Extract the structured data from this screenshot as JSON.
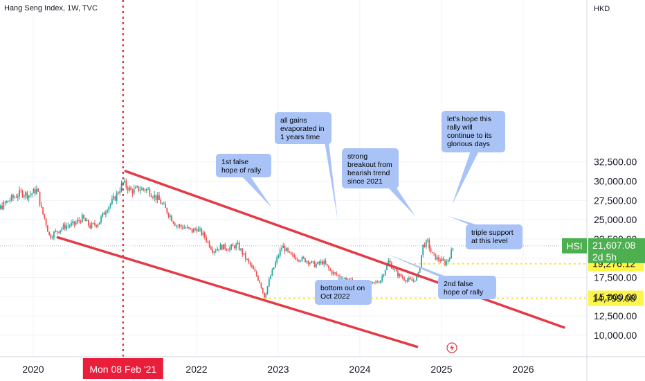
{
  "header": {
    "title": "Hang Seng Index, 1W, TVC",
    "currency": "HKD"
  },
  "colors": {
    "up": "#26a69a",
    "down": "#ef5350",
    "channel": "#e53945",
    "crosshair": "#e53945",
    "support": "#f5e23b",
    "note_bg": "#a9c3f7",
    "price_badge": "#4caf50",
    "level_badge": "#fdf54a",
    "crosshair_badge": "#e91e3a"
  },
  "chart_data": {
    "type": "candlestick",
    "ylim": [
      8500,
      35500
    ],
    "yticks": [
      10000,
      12500,
      15000,
      17500,
      20000,
      22500,
      25000,
      27500,
      30000,
      32500
    ],
    "ytick_labels": [
      "10,000.00",
      "12,500.00",
      "15,000.00",
      "17,500.00",
      "20,000.00",
      "22,500.00",
      "25,000.00",
      "27,500.00",
      "30,000.00",
      "32,500.00"
    ],
    "xticks": [
      2020,
      2022,
      2023,
      2024,
      2025,
      2026
    ],
    "xtick_labels": [
      "2020",
      "2022",
      "2023",
      "2024",
      "2025",
      "2026"
    ],
    "crosshair_date": "Mon 08 Feb '21",
    "crosshair_t": 2021.1,
    "close_path": [
      [
        2019.35,
        25800
      ],
      [
        2019.45,
        26900
      ],
      [
        2019.55,
        26100
      ],
      [
        2019.7,
        27500
      ],
      [
        2019.85,
        28500
      ],
      [
        2019.95,
        28200
      ],
      [
        2020.05,
        28900
      ],
      [
        2020.1,
        26300
      ],
      [
        2020.15,
        24800
      ],
      [
        2020.2,
        22800
      ],
      [
        2020.3,
        23600
      ],
      [
        2020.4,
        24200
      ],
      [
        2020.5,
        24400
      ],
      [
        2020.6,
        25200
      ],
      [
        2020.7,
        24100
      ],
      [
        2020.8,
        24600
      ],
      [
        2020.9,
        26500
      ],
      [
        2021.0,
        27800
      ],
      [
        2021.1,
        29800
      ],
      [
        2021.2,
        28700
      ],
      [
        2021.3,
        29000
      ],
      [
        2021.4,
        28900
      ],
      [
        2021.55,
        27400
      ],
      [
        2021.65,
        25900
      ],
      [
        2021.75,
        24300
      ],
      [
        2021.85,
        24000
      ],
      [
        2021.95,
        23500
      ],
      [
        2022.0,
        23900
      ],
      [
        2022.1,
        22800
      ],
      [
        2022.2,
        21000
      ],
      [
        2022.3,
        21500
      ],
      [
        2022.4,
        21300
      ],
      [
        2022.5,
        21700
      ],
      [
        2022.6,
        20000
      ],
      [
        2022.7,
        18400
      ],
      [
        2022.78,
        16800
      ],
      [
        2022.83,
        14900
      ],
      [
        2022.9,
        17500
      ],
      [
        2022.98,
        19800
      ],
      [
        2023.05,
        21600
      ],
      [
        2023.15,
        20300
      ],
      [
        2023.25,
        20000
      ],
      [
        2023.35,
        19700
      ],
      [
        2023.45,
        19100
      ],
      [
        2023.55,
        19500
      ],
      [
        2023.65,
        18200
      ],
      [
        2023.75,
        17600
      ],
      [
        2023.85,
        17200
      ],
      [
        2023.95,
        16700
      ],
      [
        2024.0,
        16300
      ],
      [
        2024.05,
        15600
      ],
      [
        2024.12,
        16500
      ],
      [
        2024.25,
        17100
      ],
      [
        2024.35,
        19600
      ],
      [
        2024.45,
        18000
      ],
      [
        2024.55,
        17300
      ],
      [
        2024.65,
        17000
      ],
      [
        2024.72,
        17900
      ],
      [
        2024.77,
        21600
      ],
      [
        2024.83,
        22100
      ],
      [
        2024.88,
        20500
      ],
      [
        2024.95,
        19900
      ],
      [
        2025.0,
        19700
      ],
      [
        2025.05,
        19300
      ],
      [
        2025.1,
        20300
      ],
      [
        2025.15,
        21600
      ]
    ],
    "channel_upper": [
      [
        2021.13,
        31300
      ],
      [
        2026.5,
        11000
      ]
    ],
    "channel_lower": [
      [
        2020.3,
        22700
      ],
      [
        2024.7,
        8500
      ]
    ],
    "support_levels": [
      {
        "value": 19276.12,
        "label": "19,276.12",
        "from_t": 2024.6
      },
      {
        "value": 14799.08,
        "label": "14,799.08",
        "from_t": 2022.83
      }
    ],
    "last_price": {
      "symbol": "HSI",
      "value": 21607.08,
      "label": "21,607.08",
      "countdown": "2d 5h"
    }
  },
  "notes": [
    {
      "id": "note-1st-false-hope",
      "text": "1st false hope of rally"
    },
    {
      "id": "note-all-gains",
      "text": "all gains evaporated in 1 years time"
    },
    {
      "id": "note-strong-breakout",
      "text": "strong breakout from bearish trend since 2021"
    },
    {
      "id": "note-lets-hope",
      "text": "let's hope this rally will continue to its glorious days"
    },
    {
      "id": "note-triple-support",
      "text": "triple support at this level"
    },
    {
      "id": "note-bottom-out",
      "text": "bottom out on Oct 2022"
    },
    {
      "id": "note-2nd-false-hope",
      "text": "2nd false hope of rally"
    }
  ]
}
